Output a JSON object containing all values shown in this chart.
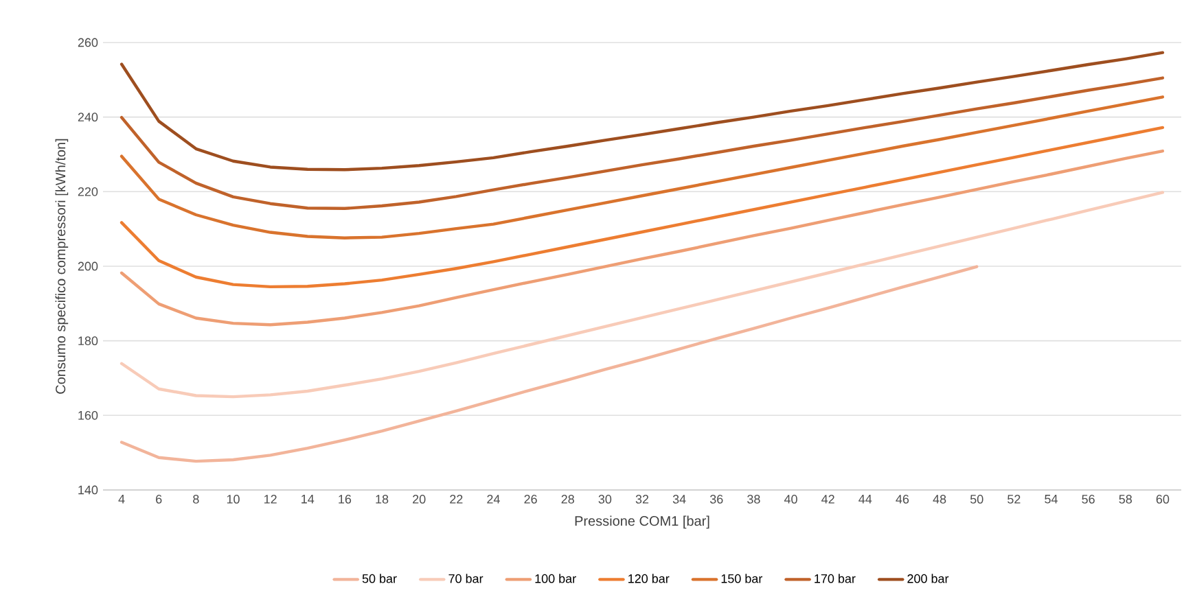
{
  "chart_data": {
    "type": "line",
    "xlabel": "Pressione COM1 [bar]",
    "ylabel": "Consumo specifico compressori [kWh/ton]",
    "x": [
      4,
      6,
      8,
      10,
      12,
      14,
      16,
      18,
      20,
      22,
      24,
      26,
      28,
      30,
      32,
      34,
      36,
      38,
      40,
      42,
      44,
      46,
      48,
      50,
      52,
      54,
      56,
      58,
      60
    ],
    "xlim": [
      3,
      61
    ],
    "xticks": [
      4,
      6,
      8,
      10,
      12,
      14,
      16,
      18,
      20,
      22,
      24,
      26,
      28,
      30,
      32,
      34,
      36,
      38,
      40,
      42,
      44,
      46,
      48,
      50,
      52,
      54,
      56,
      58,
      60
    ],
    "ylim": [
      140,
      260
    ],
    "yticks": [
      140,
      160,
      180,
      200,
      220,
      240,
      260
    ],
    "grid": "y",
    "legend": "bottom",
    "series": [
      {
        "name": "50 bar",
        "color": "#f2b49a",
        "values": [
          152.8,
          148.7,
          147.7,
          148.1,
          149.3,
          151.2,
          153.4,
          155.8,
          158.5,
          161.2,
          164.0,
          166.8,
          169.5,
          172.3,
          175.0,
          177.8,
          180.6,
          183.3,
          186.1,
          188.8,
          191.6,
          194.4,
          197.1,
          199.9,
          null,
          null,
          null,
          null,
          null
        ]
      },
      {
        "name": "70 bar",
        "color": "#f8cbb8",
        "values": [
          173.9,
          167.1,
          165.3,
          165.0,
          165.5,
          166.5,
          168.1,
          169.8,
          171.8,
          174.1,
          176.6,
          179.0,
          181.4,
          183.8,
          186.2,
          188.6,
          191.0,
          193.4,
          195.8,
          198.2,
          200.6,
          203.0,
          205.4,
          207.8,
          210.2,
          212.6,
          215.0,
          217.4,
          219.8
        ]
      },
      {
        "name": "100 bar",
        "color": "#ee9e74",
        "values": [
          198.2,
          189.9,
          186.1,
          184.7,
          184.3,
          185.0,
          186.1,
          187.6,
          189.4,
          191.6,
          193.7,
          195.8,
          197.8,
          199.9,
          202.0,
          204.0,
          206.1,
          208.2,
          210.2,
          212.3,
          214.4,
          216.5,
          218.5,
          220.6,
          222.7,
          224.7,
          226.8,
          228.9,
          230.9
        ]
      },
      {
        "name": "120 bar",
        "color": "#ed7d31",
        "values": [
          211.7,
          201.5,
          197.1,
          195.1,
          194.5,
          194.6,
          195.3,
          196.3,
          197.8,
          199.4,
          201.2,
          203.2,
          205.2,
          207.2,
          209.2,
          211.2,
          213.2,
          215.2,
          217.2,
          219.2,
          221.2,
          223.2,
          225.2,
          227.2,
          229.2,
          231.2,
          233.2,
          235.2,
          237.2
        ]
      },
      {
        "name": "150 bar",
        "color": "#d9732d",
        "values": [
          229.5,
          218.0,
          213.8,
          211.0,
          209.1,
          208.0,
          207.6,
          207.8,
          208.8,
          210.1,
          211.3,
          213.2,
          215.1,
          217.0,
          218.9,
          220.8,
          222.7,
          224.6,
          226.5,
          228.4,
          230.3,
          232.2,
          234.0,
          235.9,
          237.8,
          239.7,
          241.6,
          243.5,
          245.4
        ]
      },
      {
        "name": "170 bar",
        "color": "#c0622a",
        "values": [
          239.9,
          227.9,
          222.3,
          218.6,
          216.8,
          215.6,
          215.5,
          216.2,
          217.2,
          218.7,
          220.5,
          222.2,
          223.8,
          225.5,
          227.2,
          228.8,
          230.5,
          232.2,
          233.8,
          235.5,
          237.2,
          238.8,
          240.5,
          242.2,
          243.8,
          245.5,
          247.2,
          248.8,
          250.5
        ]
      },
      {
        "name": "200 bar",
        "color": "#9e4e1f",
        "values": [
          254.2,
          238.9,
          231.5,
          228.2,
          226.6,
          226.0,
          225.9,
          226.3,
          227.0,
          228.0,
          229.1,
          230.7,
          232.2,
          233.8,
          235.3,
          236.9,
          238.5,
          240.0,
          241.6,
          243.1,
          244.7,
          246.3,
          247.8,
          249.4,
          250.9,
          252.5,
          254.1,
          255.6,
          257.3
        ]
      }
    ]
  }
}
